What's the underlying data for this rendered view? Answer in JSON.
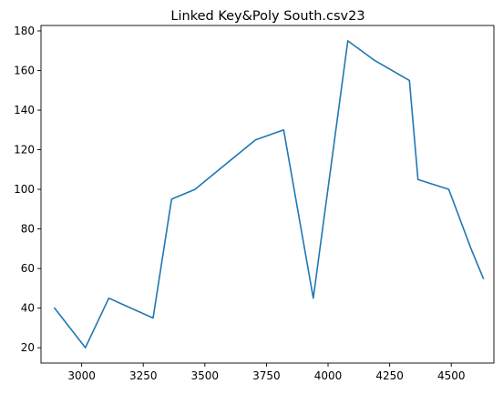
{
  "chart_data": {
    "type": "line",
    "title": "Linked Key&Poly South.csv23",
    "xlabel": "",
    "ylabel": "",
    "xlim": [
      2835,
      4673
    ],
    "ylim": [
      12.25,
      182.75
    ],
    "grid": false,
    "x_ticks": [
      3000,
      3250,
      3500,
      3750,
      4000,
      4250,
      4500
    ],
    "y_ticks": [
      20,
      40,
      60,
      80,
      100,
      120,
      140,
      160,
      180
    ],
    "series": [
      {
        "color": "#1f77b4",
        "x": [
          2890,
          3015,
          3110,
          3290,
          3365,
          3460,
          3705,
          3820,
          3940,
          4080,
          4190,
          4330,
          4365,
          4490,
          4580,
          4630
        ],
        "y": [
          40,
          20,
          45,
          35,
          95,
          100,
          125,
          130,
          45,
          175,
          165,
          155,
          105,
          100,
          70,
          55
        ]
      }
    ]
  }
}
